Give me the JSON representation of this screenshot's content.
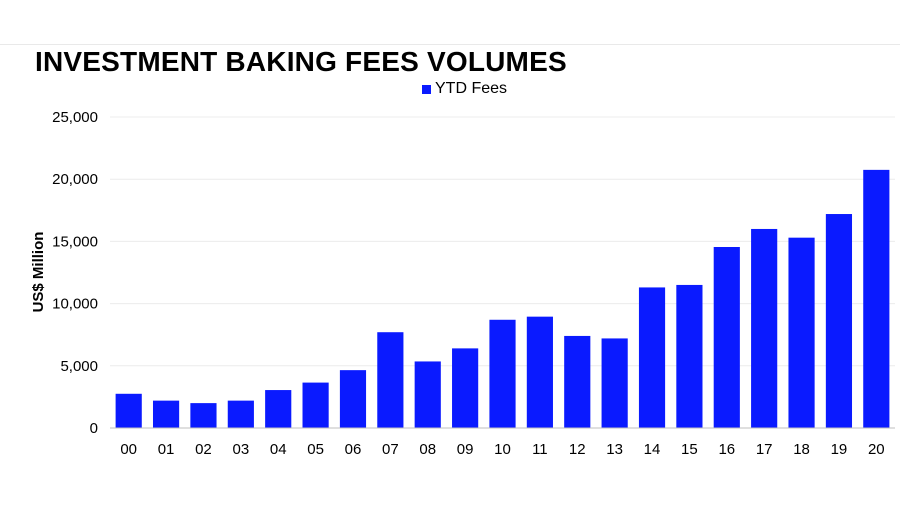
{
  "chart_data": {
    "type": "bar",
    "title": "INVESTMENT BAKING FEES VOLUMES",
    "ylabel": "US$ Million",
    "xlabel": "",
    "categories": [
      "00",
      "01",
      "02",
      "03",
      "04",
      "05",
      "06",
      "07",
      "08",
      "09",
      "10",
      "11",
      "12",
      "13",
      "14",
      "15",
      "16",
      "17",
      "18",
      "19",
      "20"
    ],
    "series": [
      {
        "name": "YTD Fees",
        "values": [
          2750,
          2200,
          2000,
          2200,
          3050,
          3650,
          4650,
          7700,
          5350,
          6400,
          8700,
          8950,
          7400,
          7200,
          11300,
          11500,
          14550,
          16000,
          15300,
          17200,
          20750
        ]
      }
    ],
    "ylim": [
      0,
      25000
    ],
    "yticks": [
      0,
      5000,
      10000,
      15000,
      20000,
      25000
    ],
    "ytick_labels": [
      "0",
      "5,000",
      "10,000",
      "15,000",
      "20,000",
      "25,000"
    ],
    "grid": true,
    "legend_position": "top-center",
    "colors": {
      "bar": "#0a1aff",
      "grid": "#ececec",
      "axis": "#bfbfbf"
    }
  }
}
